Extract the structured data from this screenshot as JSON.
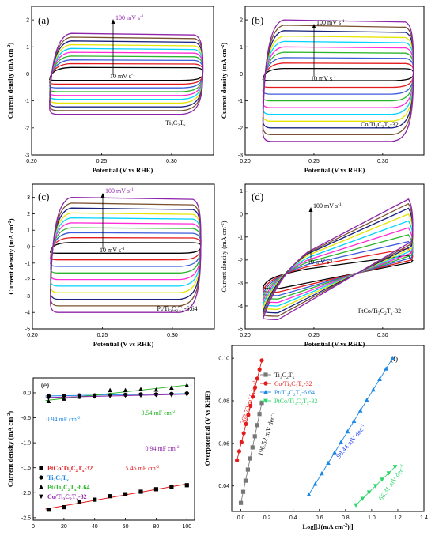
{
  "chart_data": [
    {
      "panel": "(a)",
      "type": "line",
      "sample": "Ti3C2Tx",
      "xlabel": "Potential (V vs RHE)",
      "ylabel": "Current density (mA cm-2)",
      "xticks": [
        "0.20",
        "0.25",
        "0.30"
      ],
      "yticks": [
        "-3",
        "-2",
        "-1",
        "0",
        "1",
        "2"
      ],
      "xlim": [
        0.2,
        0.33
      ],
      "ylim": [
        -3,
        2.5
      ],
      "xrange": [
        0.213,
        0.322
      ],
      "scan_rate_top": "100 mV s-1",
      "scan_rate_bottom": "10 mV s-1",
      "series": [
        {
          "scan_rate": 10,
          "color": "#000000",
          "upper": 0.24,
          "lower": -0.24
        },
        {
          "scan_rate": 20,
          "color": "#e41a1c",
          "upper": 0.38,
          "lower": -0.38
        },
        {
          "scan_rate": 30,
          "color": "#3b5bdb",
          "upper": 0.52,
          "lower": -0.52
        },
        {
          "scan_rate": 40,
          "color": "#2bb52b",
          "upper": 0.66,
          "lower": -0.66
        },
        {
          "scan_rate": 50,
          "color": "#ff2bd6",
          "upper": 0.8,
          "lower": -0.8
        },
        {
          "scan_rate": 60,
          "color": "#00d4ff",
          "upper": 0.94,
          "lower": -0.94
        },
        {
          "scan_rate": 70,
          "color": "#e5e500",
          "upper": 1.08,
          "lower": -1.08
        },
        {
          "scan_rate": 80,
          "color": "#1a237e",
          "upper": 1.22,
          "lower": -1.22
        },
        {
          "scan_rate": 90,
          "color": "#7a5230",
          "upper": 1.36,
          "lower": -1.36
        },
        {
          "scan_rate": 100,
          "color": "#8e24aa",
          "upper": 1.5,
          "lower": -1.5
        }
      ]
    },
    {
      "panel": "(b)",
      "type": "line",
      "sample": "Co/Ti3C2Tx-32",
      "xlabel": "Potential (V vs RHE)",
      "ylabel": "Current density (mA cm-2)",
      "xticks": [
        "0.20",
        "0.25",
        "0.30"
      ],
      "yticks": [
        "-3",
        "-2",
        "-1",
        "0",
        "1",
        "2"
      ],
      "xlim": [
        0.2,
        0.33
      ],
      "ylim": [
        -3,
        2.5
      ],
      "xrange": [
        0.213,
        0.322
      ],
      "scan_rate_top": "100 mV s-1",
      "scan_rate_bottom": "10 mV s-1",
      "series": [
        {
          "scan_rate": 10,
          "color": "#000000",
          "upper": 0.2,
          "lower": -0.25
        },
        {
          "scan_rate": 20,
          "color": "#e41a1c",
          "upper": 0.4,
          "lower": -0.5
        },
        {
          "scan_rate": 30,
          "color": "#3b5bdb",
          "upper": 0.6,
          "lower": -0.75
        },
        {
          "scan_rate": 40,
          "color": "#2bb52b",
          "upper": 0.8,
          "lower": -1.0
        },
        {
          "scan_rate": 50,
          "color": "#ff2bd6",
          "upper": 1.0,
          "lower": -1.25
        },
        {
          "scan_rate": 60,
          "color": "#00d4ff",
          "upper": 1.2,
          "lower": -1.5
        },
        {
          "scan_rate": 70,
          "color": "#e5e500",
          "upper": 1.4,
          "lower": -1.75
        },
        {
          "scan_rate": 80,
          "color": "#1a237e",
          "upper": 1.6,
          "lower": -2.0
        },
        {
          "scan_rate": 90,
          "color": "#7a5230",
          "upper": 1.8,
          "lower": -2.25
        },
        {
          "scan_rate": 100,
          "color": "#8e24aa",
          "upper": 2.0,
          "lower": -2.5
        }
      ]
    },
    {
      "panel": "(c)",
      "type": "line",
      "sample": "Pt/Ti3C2Tx-6.64",
      "xlabel": "Potential (V vs RHE)",
      "ylabel": "Current density (mA cm-2)",
      "xticks": [
        "0.20",
        "0.25",
        "0.30"
      ],
      "yticks": [
        "-5",
        "-4",
        "-3",
        "-2",
        "-1",
        "0",
        "1",
        "2",
        "3"
      ],
      "xlim": [
        0.2,
        0.33
      ],
      "ylim": [
        -5,
        3.8
      ],
      "xrange": [
        0.213,
        0.32
      ],
      "scan_rate_top": "100 mV s-1",
      "scan_rate_bottom": "10 mV s-1",
      "series": [
        {
          "scan_rate": 10,
          "color": "#000000",
          "upper": 0.25,
          "lower": -0.4
        },
        {
          "scan_rate": 20,
          "color": "#e41a1c",
          "upper": 0.55,
          "lower": -0.8
        },
        {
          "scan_rate": 30,
          "color": "#3b5bdb",
          "upper": 0.85,
          "lower": -1.2
        },
        {
          "scan_rate": 40,
          "color": "#2bb52b",
          "upper": 1.15,
          "lower": -1.6
        },
        {
          "scan_rate": 50,
          "color": "#ff2bd6",
          "upper": 1.45,
          "lower": -2.0
        },
        {
          "scan_rate": 60,
          "color": "#00d4ff",
          "upper": 1.75,
          "lower": -2.4
        },
        {
          "scan_rate": 70,
          "color": "#e5e500",
          "upper": 2.05,
          "lower": -2.8
        },
        {
          "scan_rate": 80,
          "color": "#1a237e",
          "upper": 2.35,
          "lower": -3.2
        },
        {
          "scan_rate": 90,
          "color": "#7a5230",
          "upper": 2.65,
          "lower": -3.6
        },
        {
          "scan_rate": 100,
          "color": "#8e24aa",
          "upper": 3.0,
          "lower": -4.0
        }
      ]
    },
    {
      "panel": "(d)",
      "type": "line",
      "sample": "PtCo/Ti3C2Tx-32",
      "xlabel": "Potential (V vs RHE)",
      "ylabel": "Current density (mA cm-2)",
      "xticks": [
        "0.20",
        "0.25",
        "0.30"
      ],
      "yticks": [
        "-5",
        "-4",
        "-3",
        "-2",
        "-1",
        "0",
        "1"
      ],
      "xlim": [
        0.2,
        0.33
      ],
      "ylim": [
        -5,
        1.3
      ],
      "xrange": [
        0.213,
        0.322
      ],
      "scan_rate_top": "100 mV s-1",
      "scan_rate_bottom": "10 mV s-1",
      "series": [
        {
          "scan_rate": 10,
          "color": "#000000",
          "lower_start": -3.2,
          "upper_end": -1.8,
          "lower_end": -2.1
        },
        {
          "scan_rate": 20,
          "color": "#e41a1c",
          "lower_start": -3.35,
          "upper_end": -1.5,
          "lower_end": -2.0
        },
        {
          "scan_rate": 30,
          "color": "#3b5bdb",
          "lower_start": -3.5,
          "upper_end": -1.2,
          "lower_end": -1.9
        },
        {
          "scan_rate": 40,
          "color": "#2bb52b",
          "lower_start": -3.65,
          "upper_end": -0.9,
          "lower_end": -1.8
        },
        {
          "scan_rate": 50,
          "color": "#ff2bd6",
          "lower_start": -3.8,
          "upper_end": -0.6,
          "lower_end": -1.7
        },
        {
          "scan_rate": 60,
          "color": "#00d4ff",
          "lower_start": -3.95,
          "upper_end": -0.3,
          "lower_end": -1.6
        },
        {
          "scan_rate": 70,
          "color": "#e5e500",
          "lower_start": -4.1,
          "upper_end": 0.0,
          "lower_end": -1.5
        },
        {
          "scan_rate": 80,
          "color": "#1a237e",
          "lower_start": -4.25,
          "upper_end": 0.25,
          "lower_end": -1.4
        },
        {
          "scan_rate": 90,
          "color": "#7a5230",
          "lower_start": -4.4,
          "upper_end": 0.45,
          "lower_end": -1.3
        },
        {
          "scan_rate": 100,
          "color": "#8e24aa",
          "lower_start": -4.55,
          "upper_end": 0.65,
          "lower_end": -1.2
        }
      ]
    },
    {
      "panel": "(e)",
      "type": "scatter",
      "xlabel": "Scan rate (mV s-1)",
      "ylabel": "Current density (mA cm-2)",
      "xticks": [
        "0",
        "20",
        "40",
        "60",
        "80",
        "100"
      ],
      "yticks": [
        "-2.5",
        "-2.0",
        "-1.5",
        "-1.0",
        "-0.5",
        "0.0"
      ],
      "xlim": [
        0,
        105
      ],
      "ylim": [
        -2.55,
        0.3
      ],
      "x": [
        10,
        20,
        30,
        40,
        50,
        60,
        70,
        80,
        90,
        100
      ],
      "legend": [
        "PtCo/Ti3C2Tx-32",
        "Ti3C2Tx",
        "Pt/Ti3C2Tx-6.64",
        "Co/Ti3C2Tx-32"
      ],
      "annotations": {
        "pt": "3.54 mF cm-2",
        "ti": "0.94 mF cm-2",
        "co": "0.94 mF cm-2",
        "ptco": "5.46 mF cm-2"
      },
      "series": [
        {
          "name": "PtCo/Ti3C2Tx-32",
          "marker": "square",
          "color": "#000000",
          "line": "#e41a1c",
          "legend_color": "#e41a1c",
          "values": [
            -2.34,
            -2.29,
            -2.19,
            -2.14,
            -2.07,
            -2.03,
            -1.98,
            -1.93,
            -1.89,
            -1.85
          ]
        },
        {
          "name": "Ti3C2Tx",
          "marker": "circle",
          "color": "#000000",
          "line": "#1e88e5",
          "legend_color": "#1e88e5",
          "values": [
            -0.06,
            -0.06,
            -0.05,
            -0.05,
            -0.04,
            -0.04,
            -0.03,
            -0.03,
            -0.02,
            -0.01
          ]
        },
        {
          "name": "Pt/Ti3C2Tx-6.64",
          "marker": "triangle-up",
          "color": "#000000",
          "line": "#2bb52b",
          "legend_color": "#2bb52b",
          "values": [
            -0.17,
            -0.12,
            -0.08,
            -0.07,
            0.05,
            0.05,
            0.07,
            0.06,
            0.1,
            0.15
          ]
        },
        {
          "name": "Co/Ti3C2Tx-32",
          "marker": "triangle-down",
          "color": "#000000",
          "line": "#8e24aa",
          "legend_color": "#8e24aa",
          "values": [
            -0.1,
            -0.08,
            -0.08,
            -0.07,
            -0.06,
            -0.05,
            -0.05,
            -0.04,
            -0.04,
            -0.03
          ]
        }
      ]
    },
    {
      "panel": "(f)",
      "type": "scatter",
      "xlabel": "Log[|J(mA cm-2)|]",
      "ylabel": "Overpotential (V vs RHE)",
      "xticks": [
        "0.0",
        "0.2",
        "0.4",
        "0.6",
        "0.8",
        "1.0",
        "1.2",
        "1.4"
      ],
      "yticks": [
        "0.04",
        "0.06",
        "0.08",
        "0.10"
      ],
      "xlim": [
        -0.07,
        1.4
      ],
      "ylim": [
        0.028,
        0.106
      ],
      "legend": [
        "Ti3C2Tx",
        "Co/Ti3C2Tx-32",
        "Pt/Ti3C2Tx-6.64",
        "PtCo/Ti3C2Tx-32"
      ],
      "series": [
        {
          "name": "Ti3C2Tx",
          "marker": "square",
          "color": "#777777",
          "slope_label": "196.52 mV dec-1",
          "label_color": "#222222",
          "x_start": 0.0,
          "x_end": 0.16,
          "y_start": 0.032,
          "y_end": 0.079,
          "n": 10
        },
        {
          "name": "Co/Ti3C2Tx-32",
          "marker": "circle",
          "color": "#e41a1c",
          "slope_label": "262.72 mV dec-1",
          "label_color": "#e41a1c",
          "x_start": -0.03,
          "x_end": 0.16,
          "y_start": 0.052,
          "y_end": 0.099,
          "n": 12
        },
        {
          "name": "Pt/Ti3C2Tx-6.64",
          "marker": "triangle-up",
          "color": "#1e88e5",
          "slope_label": "98.44 mV dec-1",
          "label_color": "#1e40ff",
          "x_start": 0.52,
          "x_end": 1.16,
          "y_start": 0.036,
          "y_end": 0.1,
          "n": 14
        },
        {
          "name": "PtCo/Ti3C2Tx-32",
          "marker": "triangle-down",
          "color": "#2bd66b",
          "slope_label": "66.31 mV dec-1",
          "label_color": "#2bd66b",
          "x_start": 0.88,
          "x_end": 1.18,
          "y_start": 0.031,
          "y_end": 0.049,
          "n": 7
        }
      ]
    }
  ]
}
